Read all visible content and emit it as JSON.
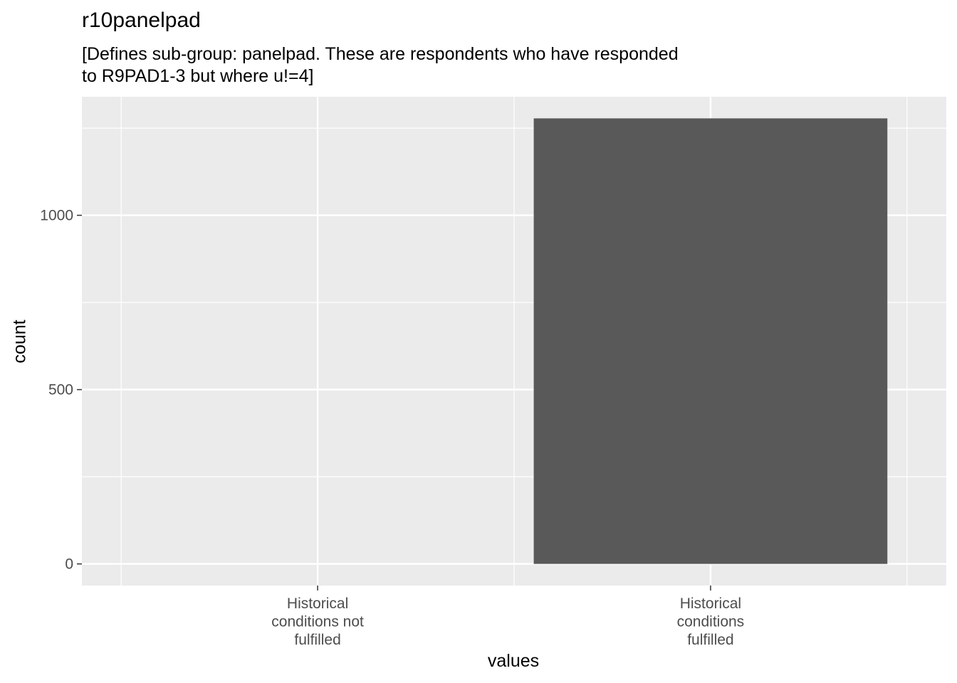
{
  "chart_data": {
    "type": "bar",
    "title": "r10panelpad",
    "subtitle": [
      "[Defines sub-group: panelpad. These are respondents who have responded",
      "to R9PAD1-3 but where u!=4]"
    ],
    "xlabel": "values",
    "ylabel": "count",
    "categories": [
      [
        "Historical",
        "conditions not",
        "fulfilled"
      ],
      [
        "Historical",
        "conditions",
        "fulfilled"
      ]
    ],
    "values": [
      0,
      1278
    ],
    "ylim": [
      -62,
      1340
    ],
    "yticks": [
      0,
      500,
      1000
    ],
    "grid": true,
    "colors": {
      "panel": "#ebebeb",
      "grid": "#ffffff",
      "bar": "#595959",
      "tick_text": "#4d4d4d",
      "tick": "#333333"
    }
  }
}
